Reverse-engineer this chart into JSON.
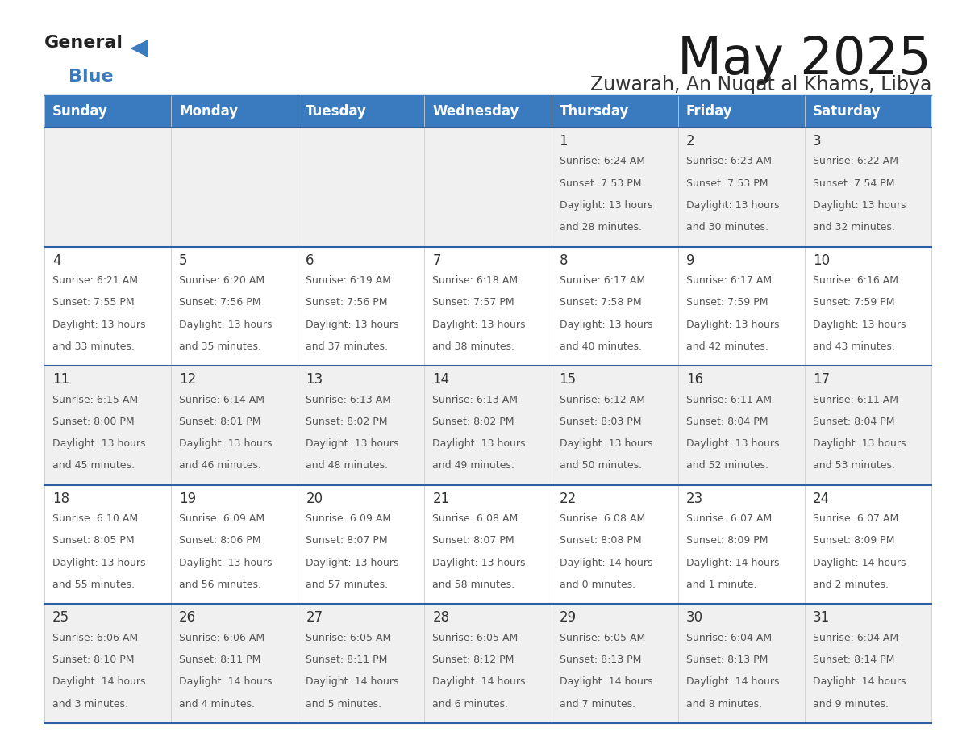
{
  "title": "May 2025",
  "subtitle": "Zuwarah, An Nuqat al Khams, Libya",
  "header_color": "#3a7bbf",
  "header_text_color": "#ffffff",
  "days_of_week": [
    "Sunday",
    "Monday",
    "Tuesday",
    "Wednesday",
    "Thursday",
    "Friday",
    "Saturday"
  ],
  "bg_color": "#ffffff",
  "cell_bg_even": "#f0f0f0",
  "cell_bg_odd": "#ffffff",
  "row_line_color": "#2e5fa3",
  "grid_line_color": "#cccccc",
  "day_number_color": "#333333",
  "cell_text_color": "#555555",
  "calendar_data": [
    [
      null,
      null,
      null,
      null,
      {
        "day": "1",
        "sunrise": "6:24 AM",
        "sunset": "7:53 PM",
        "daylight": "13 hours",
        "daylight2": "and 28 minutes."
      },
      {
        "day": "2",
        "sunrise": "6:23 AM",
        "sunset": "7:53 PM",
        "daylight": "13 hours",
        "daylight2": "and 30 minutes."
      },
      {
        "day": "3",
        "sunrise": "6:22 AM",
        "sunset": "7:54 PM",
        "daylight": "13 hours",
        "daylight2": "and 32 minutes."
      }
    ],
    [
      {
        "day": "4",
        "sunrise": "6:21 AM",
        "sunset": "7:55 PM",
        "daylight": "13 hours",
        "daylight2": "and 33 minutes."
      },
      {
        "day": "5",
        "sunrise": "6:20 AM",
        "sunset": "7:56 PM",
        "daylight": "13 hours",
        "daylight2": "and 35 minutes."
      },
      {
        "day": "6",
        "sunrise": "6:19 AM",
        "sunset": "7:56 PM",
        "daylight": "13 hours",
        "daylight2": "and 37 minutes."
      },
      {
        "day": "7",
        "sunrise": "6:18 AM",
        "sunset": "7:57 PM",
        "daylight": "13 hours",
        "daylight2": "and 38 minutes."
      },
      {
        "day": "8",
        "sunrise": "6:17 AM",
        "sunset": "7:58 PM",
        "daylight": "13 hours",
        "daylight2": "and 40 minutes."
      },
      {
        "day": "9",
        "sunrise": "6:17 AM",
        "sunset": "7:59 PM",
        "daylight": "13 hours",
        "daylight2": "and 42 minutes."
      },
      {
        "day": "10",
        "sunrise": "6:16 AM",
        "sunset": "7:59 PM",
        "daylight": "13 hours",
        "daylight2": "and 43 minutes."
      }
    ],
    [
      {
        "day": "11",
        "sunrise": "6:15 AM",
        "sunset": "8:00 PM",
        "daylight": "13 hours",
        "daylight2": "and 45 minutes."
      },
      {
        "day": "12",
        "sunrise": "6:14 AM",
        "sunset": "8:01 PM",
        "daylight": "13 hours",
        "daylight2": "and 46 minutes."
      },
      {
        "day": "13",
        "sunrise": "6:13 AM",
        "sunset": "8:02 PM",
        "daylight": "13 hours",
        "daylight2": "and 48 minutes."
      },
      {
        "day": "14",
        "sunrise": "6:13 AM",
        "sunset": "8:02 PM",
        "daylight": "13 hours",
        "daylight2": "and 49 minutes."
      },
      {
        "day": "15",
        "sunrise": "6:12 AM",
        "sunset": "8:03 PM",
        "daylight": "13 hours",
        "daylight2": "and 50 minutes."
      },
      {
        "day": "16",
        "sunrise": "6:11 AM",
        "sunset": "8:04 PM",
        "daylight": "13 hours",
        "daylight2": "and 52 minutes."
      },
      {
        "day": "17",
        "sunrise": "6:11 AM",
        "sunset": "8:04 PM",
        "daylight": "13 hours",
        "daylight2": "and 53 minutes."
      }
    ],
    [
      {
        "day": "18",
        "sunrise": "6:10 AM",
        "sunset": "8:05 PM",
        "daylight": "13 hours",
        "daylight2": "and 55 minutes."
      },
      {
        "day": "19",
        "sunrise": "6:09 AM",
        "sunset": "8:06 PM",
        "daylight": "13 hours",
        "daylight2": "and 56 minutes."
      },
      {
        "day": "20",
        "sunrise": "6:09 AM",
        "sunset": "8:07 PM",
        "daylight": "13 hours",
        "daylight2": "and 57 minutes."
      },
      {
        "day": "21",
        "sunrise": "6:08 AM",
        "sunset": "8:07 PM",
        "daylight": "13 hours",
        "daylight2": "and 58 minutes."
      },
      {
        "day": "22",
        "sunrise": "6:08 AM",
        "sunset": "8:08 PM",
        "daylight": "14 hours",
        "daylight2": "and 0 minutes."
      },
      {
        "day": "23",
        "sunrise": "6:07 AM",
        "sunset": "8:09 PM",
        "daylight": "14 hours",
        "daylight2": "and 1 minute."
      },
      {
        "day": "24",
        "sunrise": "6:07 AM",
        "sunset": "8:09 PM",
        "daylight": "14 hours",
        "daylight2": "and 2 minutes."
      }
    ],
    [
      {
        "day": "25",
        "sunrise": "6:06 AM",
        "sunset": "8:10 PM",
        "daylight": "14 hours",
        "daylight2": "and 3 minutes."
      },
      {
        "day": "26",
        "sunrise": "6:06 AM",
        "sunset": "8:11 PM",
        "daylight": "14 hours",
        "daylight2": "and 4 minutes."
      },
      {
        "day": "27",
        "sunrise": "6:05 AM",
        "sunset": "8:11 PM",
        "daylight": "14 hours",
        "daylight2": "and 5 minutes."
      },
      {
        "day": "28",
        "sunrise": "6:05 AM",
        "sunset": "8:12 PM",
        "daylight": "14 hours",
        "daylight2": "and 6 minutes."
      },
      {
        "day": "29",
        "sunrise": "6:05 AM",
        "sunset": "8:13 PM",
        "daylight": "14 hours",
        "daylight2": "and 7 minutes."
      },
      {
        "day": "30",
        "sunrise": "6:04 AM",
        "sunset": "8:13 PM",
        "daylight": "14 hours",
        "daylight2": "and 8 minutes."
      },
      {
        "day": "31",
        "sunrise": "6:04 AM",
        "sunset": "8:14 PM",
        "daylight": "14 hours",
        "daylight2": "and 9 minutes."
      }
    ]
  ],
  "logo_general_color": "#222222",
  "logo_blue_color": "#3a7bbf",
  "logo_triangle_color": "#3a7bbf"
}
